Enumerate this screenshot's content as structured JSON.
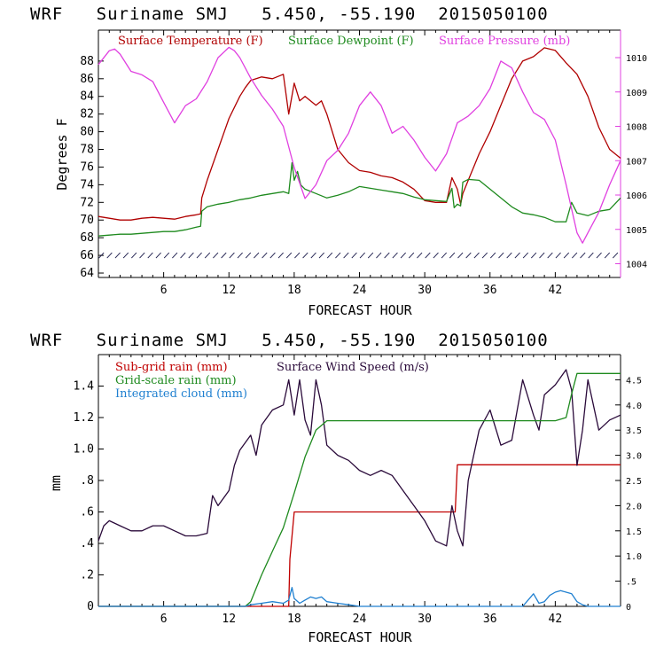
{
  "chart_data": [
    {
      "type": "line",
      "title": "WRF   Suriname SMJ   5.450, -55.190  2015050100",
      "xlabel": "FORECAST HOUR",
      "ylabel": "Degrees F",
      "xlim": [
        0,
        48
      ],
      "ylim": [
        63.5,
        91.5
      ],
      "y2lim": [
        1003.6,
        1010.8
      ],
      "xticks": [
        "6",
        "12",
        "18",
        "24",
        "30",
        "36",
        "42"
      ],
      "yticks": [
        "64",
        "66",
        "68",
        "70",
        "72",
        "74",
        "76",
        "78",
        "80",
        "82",
        "84",
        "86",
        "88"
      ],
      "y2ticks": [
        "1004",
        "1005",
        "1006",
        "1007",
        "1008",
        "1009",
        "1010"
      ],
      "wind_barbs_note": "wind barbs plotted along y = 66",
      "series": [
        {
          "name": "Surface Temperature (F)",
          "color": "#b00000",
          "axis": "left",
          "x": [
            0,
            1,
            2,
            3,
            4,
            5,
            6,
            7,
            8,
            9,
            9.4,
            9.5,
            10,
            11,
            12,
            13,
            13.5,
            14,
            15,
            16,
            17,
            17.5,
            18,
            18.5,
            19,
            20,
            20.5,
            21,
            22,
            23,
            24,
            25,
            26,
            27,
            28,
            29,
            30,
            31,
            32,
            32.5,
            33,
            33.3,
            33.5,
            34,
            35,
            36,
            37,
            38,
            39,
            40,
            41,
            42,
            43,
            44,
            45,
            46,
            47,
            48
          ],
          "y": [
            70.4,
            70.2,
            70.0,
            70.0,
            70.2,
            70.3,
            70.2,
            70.1,
            70.4,
            70.6,
            70.7,
            72.5,
            74.5,
            78.0,
            81.5,
            84.0,
            85.0,
            85.8,
            86.2,
            86.0,
            86.5,
            82.0,
            85.5,
            83.5,
            84.0,
            83.0,
            83.5,
            82.0,
            78.0,
            76.5,
            75.6,
            75.4,
            75.0,
            74.8,
            74.3,
            73.5,
            72.2,
            72.0,
            72.0,
            74.8,
            73.5,
            71.8,
            73.0,
            74.5,
            77.5,
            80.0,
            83.0,
            86.0,
            88.0,
            88.5,
            89.5,
            89.2,
            87.8,
            86.5,
            84.0,
            80.5,
            78.0,
            77.0
          ]
        },
        {
          "name": "Surface Dewpoint (F)",
          "color": "#1e8a1e",
          "axis": "left",
          "x": [
            0,
            1,
            2,
            3,
            4,
            5,
            6,
            7,
            8,
            9,
            9.4,
            9.5,
            10,
            11,
            12,
            13,
            14,
            15,
            16,
            17,
            17.5,
            17.8,
            18,
            18.3,
            18.6,
            19,
            20,
            21,
            22,
            23,
            24,
            25,
            26,
            27,
            28,
            29,
            30,
            31,
            32,
            32.5,
            32.7,
            33,
            33.3,
            33.5,
            34,
            35,
            36,
            37,
            38,
            39,
            40,
            41,
            42,
            43,
            43.5,
            44,
            45,
            46,
            47,
            48
          ],
          "y": [
            68.2,
            68.3,
            68.4,
            68.4,
            68.5,
            68.6,
            68.7,
            68.7,
            68.9,
            69.2,
            69.3,
            71.0,
            71.5,
            71.8,
            72.0,
            72.3,
            72.5,
            72.8,
            73.0,
            73.2,
            73.0,
            76.5,
            74.5,
            75.5,
            74.0,
            73.5,
            73.0,
            72.5,
            72.8,
            73.2,
            73.8,
            73.6,
            73.4,
            73.2,
            73.0,
            72.6,
            72.3,
            72.2,
            72.1,
            73.6,
            71.4,
            71.8,
            71.6,
            74.3,
            74.6,
            74.5,
            73.5,
            72.5,
            71.5,
            70.8,
            70.6,
            70.3,
            69.8,
            69.8,
            72.0,
            70.8,
            70.5,
            71.0,
            71.2,
            72.5
          ]
        },
        {
          "name": "Surface Pressure (mb)",
          "color": "#e040e0",
          "axis": "right",
          "x": [
            0,
            1,
            1.5,
            2,
            3,
            4,
            5,
            6,
            7,
            8,
            9,
            10,
            11,
            12,
            12.5,
            13,
            14,
            15,
            16,
            17,
            18,
            19,
            20,
            21,
            22,
            23,
            24,
            25,
            26,
            27,
            28,
            29,
            30,
            31,
            32,
            33,
            34,
            35,
            36,
            37,
            38,
            39,
            40,
            41,
            42,
            43,
            44,
            44.5,
            45,
            46,
            47,
            48
          ],
          "y": [
            1009.8,
            1010.2,
            1010.25,
            1010.1,
            1009.6,
            1009.5,
            1009.3,
            1008.7,
            1008.1,
            1008.6,
            1008.8,
            1009.3,
            1010.0,
            1010.3,
            1010.2,
            1010.0,
            1009.4,
            1008.9,
            1008.5,
            1008.0,
            1006.8,
            1005.9,
            1006.3,
            1007.0,
            1007.3,
            1007.8,
            1008.6,
            1009.0,
            1008.6,
            1007.8,
            1008.0,
            1007.6,
            1007.1,
            1006.7,
            1007.2,
            1008.1,
            1008.3,
            1008.6,
            1009.1,
            1009.9,
            1009.7,
            1009.0,
            1008.4,
            1008.2,
            1007.6,
            1006.3,
            1004.9,
            1004.6,
            1004.9,
            1005.5,
            1006.3,
            1007.0
          ]
        }
      ]
    },
    {
      "type": "line",
      "title": "WRF   Suriname SMJ   5.450, -55.190  2015050100",
      "xlabel": "FORECAST HOUR",
      "ylabel": "mm",
      "xlim": [
        0,
        48
      ],
      "ylim": [
        0,
        1.6
      ],
      "y2lim": [
        0,
        5.0
      ],
      "xticks": [
        "6",
        "12",
        "18",
        "24",
        "30",
        "36",
        "42"
      ],
      "yticks": [
        "0",
        ".2",
        ".4",
        ".6",
        ".8",
        "1.0",
        "1.2",
        "1.4"
      ],
      "y2ticks": [
        "0",
        ".5",
        "1.0",
        "1.5",
        "2.0",
        "2.5",
        "3.0",
        "3.5",
        "4.0",
        "4.5"
      ],
      "series": [
        {
          "name": "Sub-grid rain (mm)",
          "color": "#c00000",
          "axis": "left",
          "x": [
            0,
            17.5,
            17.6,
            18,
            32.8,
            33.0,
            48
          ],
          "y": [
            0,
            0,
            0.3,
            0.6,
            0.6,
            0.9,
            0.9
          ]
        },
        {
          "name": "Surface Wind Speed (m/s)",
          "color": "#2a0a3a",
          "axis": "right",
          "x": [
            0,
            0.5,
            1,
            2,
            3,
            4,
            5,
            6,
            7,
            8,
            9,
            10,
            10.5,
            11,
            12,
            12.5,
            13,
            14,
            14.5,
            15,
            16,
            17,
            17.5,
            18,
            18.5,
            19,
            19.5,
            20,
            20.5,
            21,
            22,
            23,
            24,
            25,
            26,
            27,
            28,
            29,
            30,
            31,
            32,
            32.5,
            33,
            33.5,
            34,
            35,
            36,
            37,
            38,
            39,
            40,
            40.5,
            41,
            42,
            43,
            43.5,
            44,
            44.5,
            45,
            46,
            47,
            48
          ],
          "y": [
            1.3,
            1.6,
            1.7,
            1.6,
            1.5,
            1.5,
            1.6,
            1.6,
            1.5,
            1.4,
            1.4,
            1.45,
            2.2,
            2.0,
            2.3,
            2.8,
            3.1,
            3.4,
            3.0,
            3.6,
            3.9,
            4.0,
            4.5,
            3.8,
            4.5,
            3.7,
            3.4,
            4.5,
            4.0,
            3.2,
            3.0,
            2.9,
            2.7,
            2.6,
            2.7,
            2.6,
            2.3,
            2.0,
            1.7,
            1.3,
            1.2,
            2.0,
            1.5,
            1.2,
            2.5,
            3.5,
            3.9,
            3.2,
            3.3,
            4.5,
            3.8,
            3.5,
            4.2,
            4.4,
            4.7,
            4.3,
            2.8,
            3.5,
            4.5,
            3.5,
            3.7,
            3.8
          ]
        },
        {
          "name": "Grid-scale rain (mm)",
          "color": "#1e8a1e",
          "axis": "left",
          "x": [
            0,
            13.5,
            14,
            15,
            16,
            17,
            18,
            19,
            20,
            21,
            22,
            26,
            30,
            34,
            38,
            42,
            43,
            43.5,
            44,
            46,
            48
          ],
          "y": [
            0,
            0,
            0.03,
            0.2,
            0.35,
            0.5,
            0.72,
            0.95,
            1.12,
            1.18,
            1.18,
            1.18,
            1.18,
            1.18,
            1.18,
            1.18,
            1.2,
            1.35,
            1.48,
            1.48,
            1.48
          ]
        },
        {
          "name": "Integrated cloud (mm)",
          "color": "#2080d0",
          "axis": "left",
          "x": [
            0,
            13.5,
            14,
            15,
            16,
            17,
            17.5,
            17.8,
            18,
            18.5,
            19,
            19.5,
            20,
            20.5,
            21,
            22,
            23,
            24,
            30,
            39,
            39.5,
            40,
            40.5,
            41,
            41.5,
            42,
            42.5,
            43,
            43.5,
            44,
            44.5,
            45,
            48
          ],
          "y": [
            0,
            0,
            0.01,
            0.02,
            0.03,
            0.02,
            0.04,
            0.12,
            0.05,
            0.02,
            0.04,
            0.06,
            0.05,
            0.06,
            0.03,
            0.02,
            0.01,
            0,
            0,
            0,
            0.04,
            0.08,
            0.02,
            0.03,
            0.07,
            0.09,
            0.1,
            0.09,
            0.08,
            0.03,
            0.01,
            0,
            0
          ]
        }
      ]
    }
  ]
}
